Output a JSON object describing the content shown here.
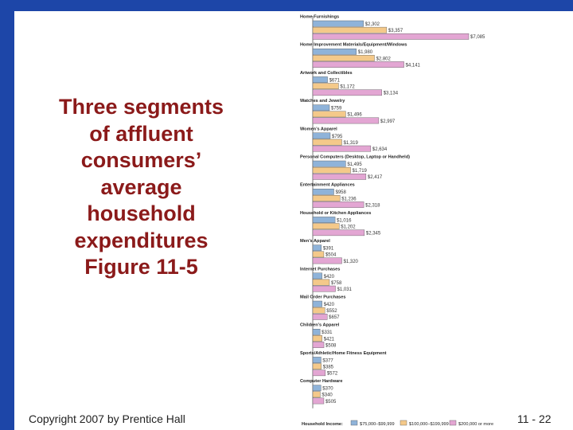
{
  "slide": {
    "title_lines": [
      "Three segments",
      "of affluent",
      "consumers’",
      "average",
      "household",
      "expenditures",
      "Figure 11-5"
    ],
    "copyright": "Copyright 2007 by Prentice Hall",
    "page_number": "11 - 22"
  },
  "chart_data": {
    "type": "bar",
    "orientation": "horizontal",
    "title": "",
    "xlabel": "",
    "ylabel": "",
    "xlim": [
      0,
      7085
    ],
    "grid": false,
    "legend_title": "Household Income:",
    "legend_position": "bottom",
    "series": [
      {
        "name": "$75,000–$99,999",
        "color": "#8fb3d9"
      },
      {
        "name": "$100,000–$199,999",
        "color": "#f4c98a"
      },
      {
        "name": "$200,000 or more",
        "color": "#e3a6d3"
      }
    ],
    "categories": [
      {
        "name": "Home Furnishings",
        "values": [
          2302,
          3357,
          7085
        ],
        "labels": [
          "$2,302",
          "$3,357",
          "$7,085"
        ]
      },
      {
        "name": "Home Improvement Materials/Equipment/Windows",
        "values": [
          1980,
          2802,
          4141
        ],
        "labels": [
          "$1,980",
          "$2,802",
          "$4,141"
        ]
      },
      {
        "name": "Artwork and Collectibles",
        "values": [
          671,
          1172,
          3134
        ],
        "labels": [
          "$671",
          "$1,172",
          "$3,134"
        ]
      },
      {
        "name": "Watches and Jewelry",
        "values": [
          759,
          1496,
          2997
        ],
        "labels": [
          "$759",
          "$1,496",
          "$2,997"
        ]
      },
      {
        "name": "Women’s Apparel",
        "values": [
          795,
          1319,
          2634
        ],
        "labels": [
          "$795",
          "$1,319",
          "$2,634"
        ]
      },
      {
        "name": "Personal Computers (Desktop, Laptop or Handheld)",
        "values": [
          1495,
          1719,
          2417
        ],
        "labels": [
          "$1,495",
          "$1,719",
          "$2,417"
        ]
      },
      {
        "name": "Entertainment Appliances",
        "values": [
          958,
          1236,
          2318
        ],
        "labels": [
          "$958",
          "$1,236",
          "$2,318"
        ]
      },
      {
        "name": "Household or Kitchen Appliances",
        "values": [
          1016,
          1202,
          2345
        ],
        "labels": [
          "$1,016",
          "$1,202",
          "$2,345"
        ]
      },
      {
        "name": "Men’s Apparel",
        "values": [
          391,
          504,
          1320
        ],
        "labels": [
          "$391",
          "$504",
          "$1,320"
        ]
      },
      {
        "name": "Internet Purchases",
        "values": [
          420,
          758,
          1031
        ],
        "labels": [
          "$420",
          "$758",
          "$1,031"
        ]
      },
      {
        "name": "Mail Order Purchases",
        "values": [
          420,
          552,
          657
        ],
        "labels": [
          "$420",
          "$552",
          "$657"
        ]
      },
      {
        "name": "Children’s Apparel",
        "values": [
          331,
          421,
          508
        ],
        "labels": [
          "$331",
          "$421",
          "$508"
        ]
      },
      {
        "name": "Sports/Athletic/Home Fitness Equipment",
        "values": [
          377,
          385,
          572
        ],
        "labels": [
          "$377",
          "$385",
          "$572"
        ]
      },
      {
        "name": "Computer Hardware",
        "values": [
          370,
          340,
          505
        ],
        "labels": [
          "$370",
          "$340",
          "$505"
        ]
      }
    ]
  }
}
